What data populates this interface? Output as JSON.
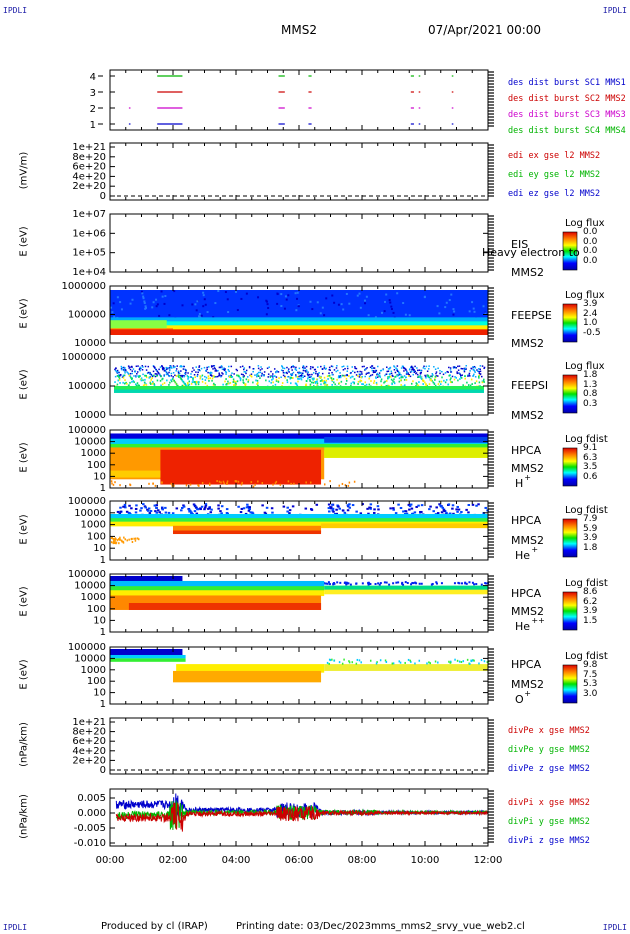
{
  "corners": {
    "top_left": "IPDLI",
    "top_right": "IPDLI",
    "bottom_left": "IPDLI",
    "bottom_right": "IPDLI"
  },
  "header": {
    "spacecraft": "MMS2",
    "datetime": "07/Apr/2021 00:00"
  },
  "footer": {
    "produced": "Produced by cl (IRAP)",
    "printing": "Printing date: 03/Dec/2023",
    "script": "mms_mms2_srvy_vue_web2.cl"
  },
  "colors": {
    "sc1": "#0000cc",
    "sc2": "#cc0000",
    "sc3": "#cc00cc",
    "sc4": "#00b400",
    "dashed": "#000000"
  },
  "chart_data": [
    {
      "id": "burst",
      "type": "line",
      "ytick_labels": [
        "4",
        "3",
        "2",
        "1"
      ],
      "series": [
        {
          "name": "des dist burst SC1 MMS1",
          "color": "#0000cc",
          "level": 1,
          "intervals": [
            [
              0.6,
              0.65
            ],
            [
              1.5,
              2.3
            ],
            [
              5.35,
              5.55
            ],
            [
              6.3,
              6.4
            ],
            [
              9.55,
              9.65
            ],
            [
              9.8,
              9.85
            ],
            [
              10.85,
              10.9
            ]
          ]
        },
        {
          "name": "des dist burst SC2 MMS2",
          "color": "#cc0000",
          "level": 3,
          "intervals": [
            [
              1.5,
              2.3
            ],
            [
              5.35,
              5.55
            ],
            [
              6.3,
              6.4
            ],
            [
              9.55,
              9.65
            ],
            [
              9.8,
              9.85
            ],
            [
              10.85,
              10.9
            ]
          ]
        },
        {
          "name": "des dist burst SC3 MMS3",
          "color": "#cc00cc",
          "level": 2,
          "intervals": [
            [
              0.6,
              0.65
            ],
            [
              1.5,
              2.3
            ],
            [
              5.35,
              5.55
            ],
            [
              6.3,
              6.4
            ],
            [
              9.55,
              9.65
            ],
            [
              9.8,
              9.85
            ],
            [
              10.85,
              10.9
            ]
          ]
        },
        {
          "name": "des dist burst SC4 MMS4",
          "color": "#00b400",
          "level": 4,
          "intervals": [
            [
              1.5,
              2.3
            ],
            [
              5.35,
              5.55
            ],
            [
              6.3,
              6.4
            ],
            [
              9.55,
              9.65
            ],
            [
              9.8,
              9.85
            ],
            [
              10.85,
              10.9
            ]
          ]
        }
      ]
    },
    {
      "id": "edi",
      "type": "line",
      "ylabel": "(mV/m)",
      "ytick_labels": [
        "1e+21",
        "8e+20",
        "6e+20",
        "4e+20",
        "2e+20",
        "0"
      ],
      "series": [
        {
          "name": "edi ex gse l2 MMS2",
          "color": "#cc0000"
        },
        {
          "name": "edi ey gse l2 MMS2",
          "color": "#00b400"
        },
        {
          "name": "edi ez gse l2 MMS2",
          "color": "#0000cc"
        }
      ]
    },
    {
      "id": "eis",
      "type": "heatmap",
      "ylabel": "E (eV)",
      "ytick_labels": [
        "1e+07",
        "1e+06",
        "1e+05",
        "1e+04"
      ],
      "side_top": "EIS",
      "side_bottom": "MMS2",
      "overlay": "Heavy electron to",
      "colorbar_title": "Log flux",
      "colorbar_ticks": [
        "0.0",
        "0.0",
        "0.0",
        "0.0"
      ]
    },
    {
      "id": "feepse",
      "type": "heatmap",
      "ylabel": "E (eV)",
      "ytick_labels": [
        "1000000",
        "100000",
        "10000"
      ],
      "side_top": "FEEPSE",
      "side_bottom": "MMS2",
      "colorbar_title": "Log flux",
      "colorbar_ticks": [
        "3.9",
        "2.4",
        "1.0",
        "-0.5"
      ]
    },
    {
      "id": "feepsi",
      "type": "heatmap",
      "ylabel": "E (eV)",
      "ytick_labels": [
        "1000000",
        "100000",
        "10000"
      ],
      "side_top": "FEEPSI",
      "side_bottom": "MMS2",
      "colorbar_title": "Log flux",
      "colorbar_ticks": [
        "1.8",
        "1.3",
        "0.8",
        "0.3"
      ]
    },
    {
      "id": "hpca_h",
      "type": "heatmap",
      "ylabel": "E (eV)",
      "ytick_labels": [
        "100000",
        "10000",
        "1000",
        "100",
        "10",
        "1"
      ],
      "side_top": "HPCA",
      "side_bottom": "MMS2",
      "species": "H",
      "charge": "+",
      "colorbar_title": "Log fdist",
      "colorbar_ticks": [
        "9.1",
        "6.3",
        "3.5",
        "0.6"
      ]
    },
    {
      "id": "hpca_he",
      "type": "heatmap",
      "ylabel": "E (eV)",
      "ytick_labels": [
        "100000",
        "10000",
        "1000",
        "100",
        "10",
        "1"
      ],
      "side_top": "HPCA",
      "side_bottom": "MMS2",
      "species": "He",
      "charge": "+",
      "colorbar_title": "Log fdist",
      "colorbar_ticks": [
        "7.9",
        "5.9",
        "3.9",
        "1.8"
      ]
    },
    {
      "id": "hpca_he2",
      "type": "heatmap",
      "ylabel": "E (eV)",
      "ytick_labels": [
        "100000",
        "10000",
        "1000",
        "100",
        "10",
        "1"
      ],
      "side_top": "HPCA",
      "side_bottom": "MMS2",
      "species": "He",
      "charge": "++",
      "colorbar_title": "Log fdist",
      "colorbar_ticks": [
        "8.6",
        "6.2",
        "3.9",
        "1.5"
      ]
    },
    {
      "id": "hpca_o",
      "type": "heatmap",
      "ylabel": "E (eV)",
      "ytick_labels": [
        "100000",
        "10000",
        "1000",
        "100",
        "10",
        "1"
      ],
      "side_top": "HPCA",
      "side_bottom": "MMS2",
      "species": "O",
      "charge": "+",
      "colorbar_title": "Log fdist",
      "colorbar_ticks": [
        "9.8",
        "7.5",
        "5.3",
        "3.0"
      ]
    },
    {
      "id": "divpe",
      "type": "line",
      "ylabel": "(nPa/km)",
      "ytick_labels": [
        "1e+21",
        "8e+20",
        "6e+20",
        "4e+20",
        "2e+20",
        "0"
      ],
      "series": [
        {
          "name": "divPe x gse MMS2",
          "color": "#cc0000"
        },
        {
          "name": "divPe y gse MMS2",
          "color": "#00b400"
        },
        {
          "name": "divPe z gse MMS2",
          "color": "#0000cc"
        }
      ]
    },
    {
      "id": "divpi",
      "type": "line",
      "ylabel": "(nPa/km)",
      "ytick_labels": [
        "0.005",
        "0.000",
        "-0.005",
        "-0.010"
      ],
      "ylim": [
        -0.011,
        0.008
      ],
      "series": [
        {
          "name": "divPi x gse MMS2",
          "color": "#cc0000"
        },
        {
          "name": "divPi y gse MMS2",
          "color": "#00b400"
        },
        {
          "name": "divPi z gse MMS2",
          "color": "#0000cc"
        }
      ]
    }
  ],
  "xaxis": {
    "range_hours": [
      0,
      12
    ],
    "tick_labels": [
      "00:00",
      "02:00",
      "04:00",
      "06:00",
      "08:00",
      "10:00",
      "12:00"
    ]
  }
}
